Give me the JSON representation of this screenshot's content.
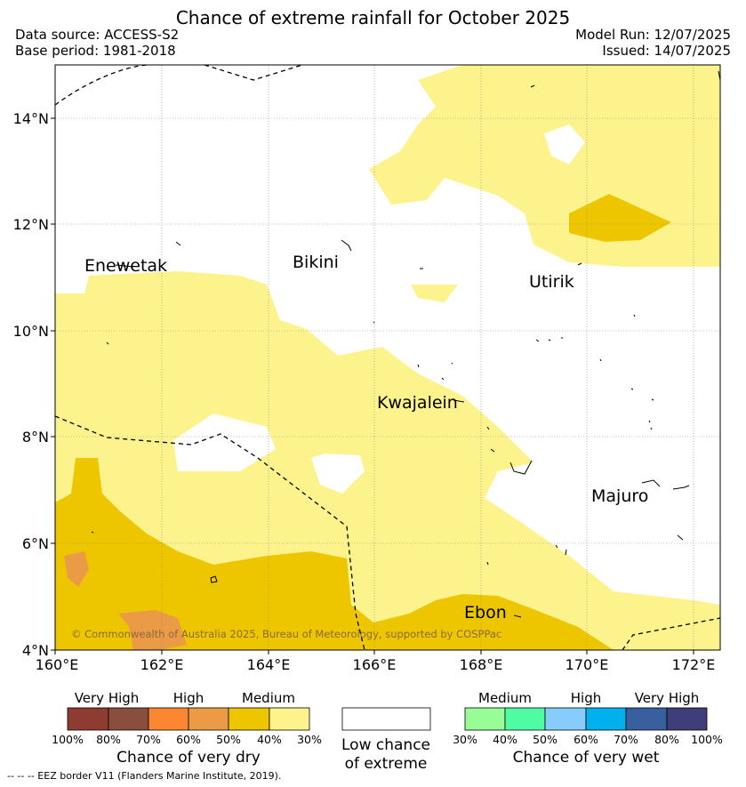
{
  "header": {
    "title": "Chance of extreme rainfall for October 2025",
    "data_source": "Data source: ACCESS-S2",
    "base_period": "Base period: 1981-2018",
    "model_run": "Model Run: 12/07/2025",
    "issued": "Issued: 14/07/2025"
  },
  "map": {
    "lat_ticks": [
      "4°N",
      "6°N",
      "8°N",
      "10°N",
      "12°N",
      "14°N"
    ],
    "lon_ticks": [
      "160°E",
      "162°E",
      "164°E",
      "166°E",
      "168°E",
      "170°E",
      "172°E"
    ],
    "places": [
      {
        "name": "Enewetak"
      },
      {
        "name": "Bikini"
      },
      {
        "name": "Utirik"
      },
      {
        "name": "Kwajalein"
      },
      {
        "name": "Majuro"
      },
      {
        "name": "Ebon"
      }
    ],
    "copyright": "© Commonwealth of Australia 2025, Bureau of Meteorology, supported by COSPPac",
    "colors": {
      "dry_medium_light": "#fdf38c",
      "dry_medium": "#edc600",
      "dry_high": "#eb9b46",
      "low_chance": "#ffffff"
    }
  },
  "legend": {
    "dry": {
      "categories": [
        "Very High",
        "High",
        "Medium"
      ],
      "ticks": [
        "100%",
        "80%",
        "70%",
        "60%",
        "50%",
        "40%",
        "30%"
      ],
      "colors": [
        "#8e3b32",
        "#8a4e3e",
        "#fd8630",
        "#eb9b46",
        "#edc600",
        "#fdf38c"
      ],
      "caption": "Chance of very dry"
    },
    "neutral": {
      "caption_line1": "Low chance",
      "caption_line2": "of extreme"
    },
    "wet": {
      "categories": [
        "Medium",
        "High",
        "Very High"
      ],
      "ticks": [
        "30%",
        "40%",
        "50%",
        "60%",
        "70%",
        "80%",
        "100%"
      ],
      "colors": [
        "#98fd97",
        "#50fca2",
        "#86cdfe",
        "#00b1ed",
        "#38609f",
        "#3f3e7a"
      ],
      "caption": "Chance of very wet"
    }
  },
  "footnote": "--  --  -- EEZ border V11 (Flanders Marine Institute, 2019)."
}
